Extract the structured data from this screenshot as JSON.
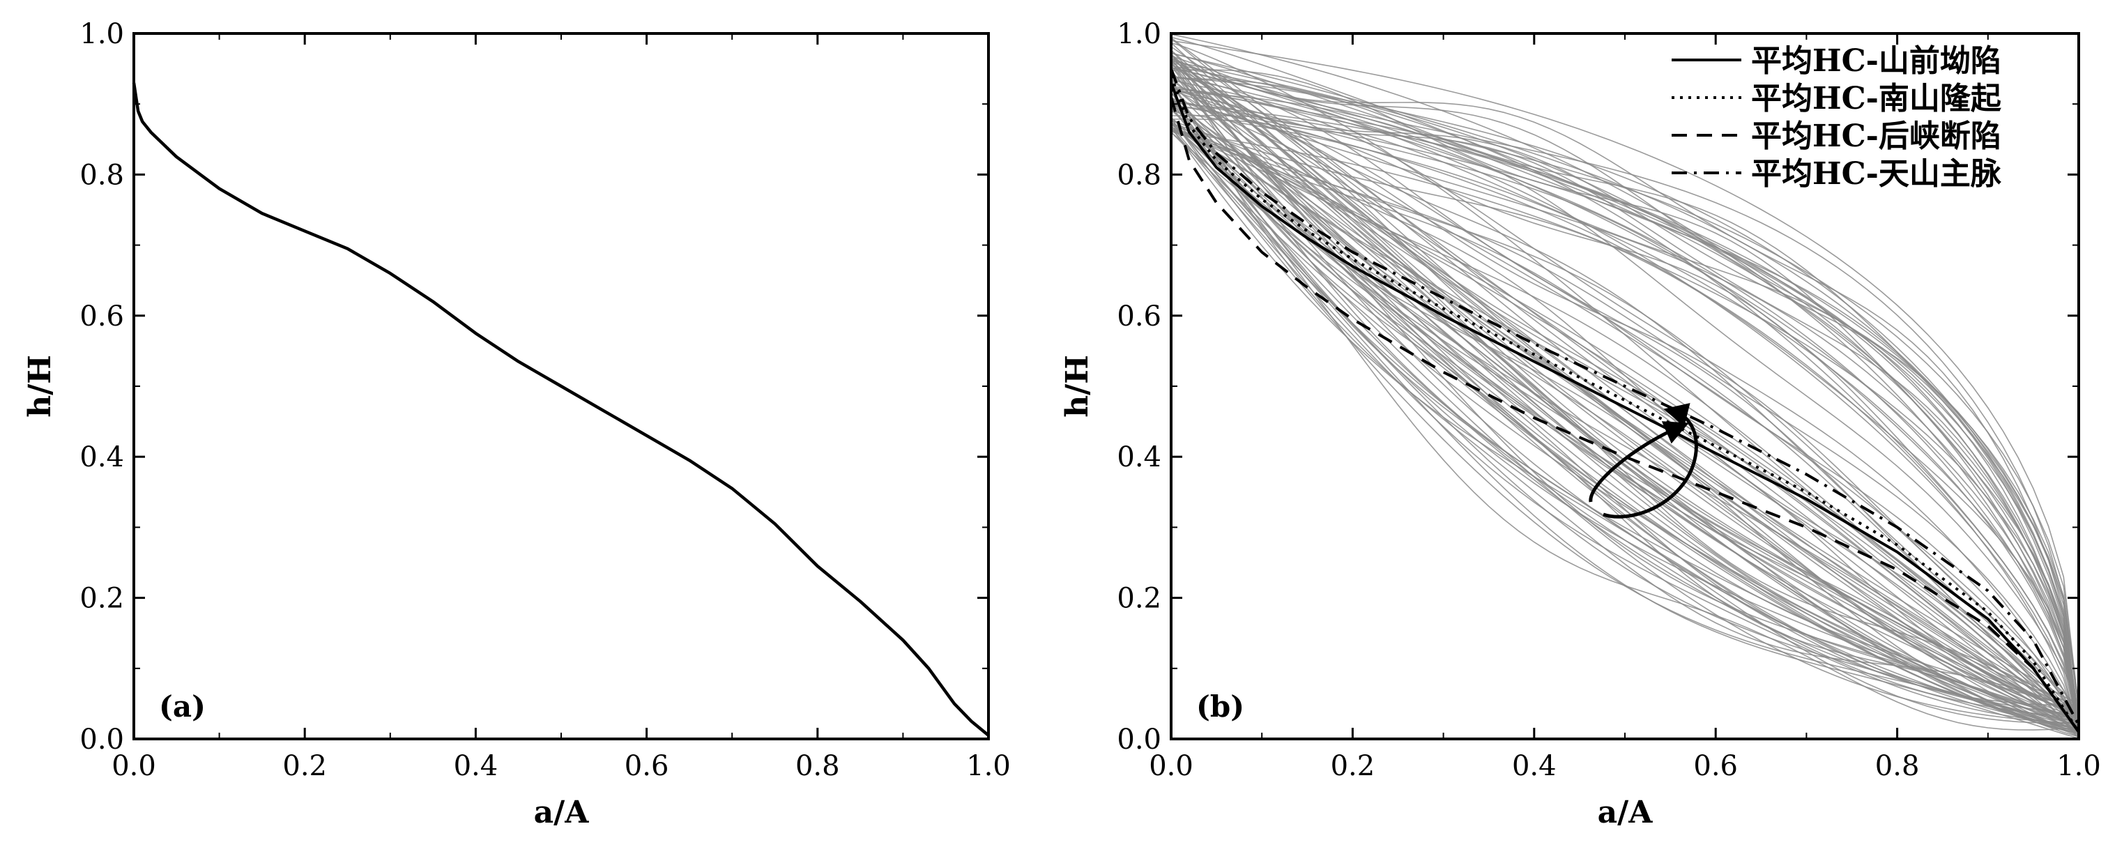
{
  "chart_data": [
    {
      "type": "line",
      "panel_label": "(a)",
      "xlabel": "a/A",
      "ylabel": "h/H",
      "xlim": [
        0,
        1
      ],
      "ylim": [
        0,
        1
      ],
      "xticks": [
        "0.0",
        "0.2",
        "0.4",
        "0.6",
        "0.8",
        "1.0"
      ],
      "yticks": [
        "0.0",
        "0.2",
        "0.4",
        "0.6",
        "0.8",
        "1.0"
      ],
      "grid": false,
      "series": [
        {
          "style": "solid",
          "color": "#000000",
          "x": [
            0.0,
            0.005,
            0.01,
            0.02,
            0.05,
            0.1,
            0.15,
            0.2,
            0.25,
            0.3,
            0.35,
            0.4,
            0.45,
            0.5,
            0.55,
            0.6,
            0.65,
            0.7,
            0.75,
            0.8,
            0.85,
            0.9,
            0.93,
            0.96,
            0.98,
            1.0
          ],
          "y": [
            0.93,
            0.89,
            0.875,
            0.86,
            0.825,
            0.78,
            0.745,
            0.72,
            0.695,
            0.66,
            0.62,
            0.575,
            0.535,
            0.5,
            0.465,
            0.43,
            0.395,
            0.355,
            0.305,
            0.245,
            0.195,
            0.14,
            0.1,
            0.05,
            0.025,
            0.005
          ]
        }
      ]
    },
    {
      "type": "line",
      "panel_label": "(b)",
      "xlabel": "a/A",
      "ylabel": "h/H",
      "xlim": [
        0,
        1
      ],
      "ylim": [
        0,
        1
      ],
      "xticks": [
        "0.0",
        "0.2",
        "0.4",
        "0.6",
        "0.8",
        "1.0"
      ],
      "yticks": [
        "0.0",
        "0.2",
        "0.4",
        "0.6",
        "0.8",
        "1.0"
      ],
      "grid": false,
      "legend_position": "top-right",
      "background_curves": {
        "count": 110,
        "color": "#8a8a8a",
        "description_of_range": "individual hypsometric curves spanning from concave to convex shapes"
      },
      "series": [
        {
          "name": "平均HC-山前坳陷",
          "style": "solid",
          "x": [
            0.0,
            0.02,
            0.05,
            0.1,
            0.15,
            0.2,
            0.3,
            0.4,
            0.5,
            0.6,
            0.7,
            0.8,
            0.9,
            0.95,
            1.0
          ],
          "y": [
            0.93,
            0.86,
            0.81,
            0.755,
            0.71,
            0.67,
            0.6,
            0.535,
            0.47,
            0.405,
            0.34,
            0.265,
            0.17,
            0.1,
            0.01
          ]
        },
        {
          "name": "平均HC-南山隆起",
          "style": "dotted",
          "x": [
            0.0,
            0.02,
            0.05,
            0.1,
            0.15,
            0.2,
            0.3,
            0.4,
            0.5,
            0.6,
            0.7,
            0.8,
            0.9,
            0.95,
            1.0
          ],
          "y": [
            0.94,
            0.87,
            0.82,
            0.765,
            0.72,
            0.68,
            0.61,
            0.545,
            0.48,
            0.415,
            0.35,
            0.275,
            0.18,
            0.11,
            0.01
          ]
        },
        {
          "name": "平均HC-后峡断陷",
          "style": "dashed",
          "x": [
            0.0,
            0.02,
            0.05,
            0.1,
            0.15,
            0.2,
            0.3,
            0.4,
            0.5,
            0.6,
            0.7,
            0.8,
            0.9,
            0.95,
            1.0
          ],
          "y": [
            0.91,
            0.82,
            0.76,
            0.69,
            0.64,
            0.595,
            0.52,
            0.455,
            0.4,
            0.35,
            0.3,
            0.24,
            0.16,
            0.1,
            0.01
          ]
        },
        {
          "name": "平均HC-天山主脉",
          "style": "dashdot",
          "x": [
            0.0,
            0.02,
            0.05,
            0.1,
            0.15,
            0.2,
            0.3,
            0.4,
            0.5,
            0.6,
            0.7,
            0.8,
            0.9,
            0.95,
            1.0
          ],
          "y": [
            0.95,
            0.88,
            0.83,
            0.775,
            0.73,
            0.69,
            0.625,
            0.56,
            0.5,
            0.44,
            0.375,
            0.3,
            0.21,
            0.14,
            0.02
          ]
        }
      ]
    }
  ]
}
